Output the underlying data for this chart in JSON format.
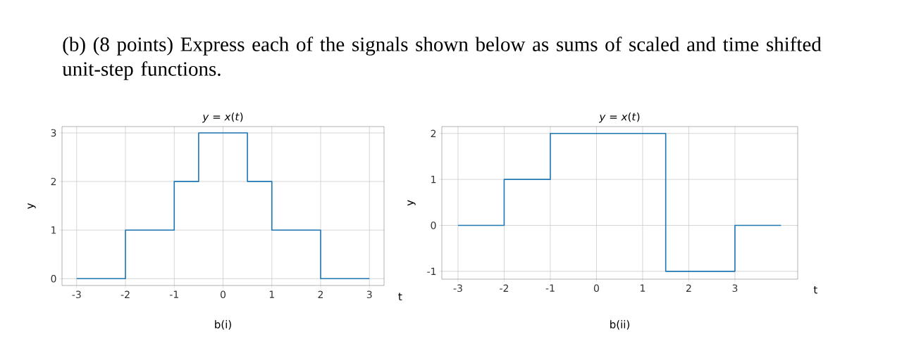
{
  "chart_data": [
    {
      "type": "step",
      "title": "*y* = *x*(*t*)",
      "xlabel": "t",
      "ylabel": "y",
      "x": [
        -3,
        -2,
        -1,
        -0.5,
        0.5,
        1,
        2,
        3
      ],
      "values": [
        0,
        1,
        2,
        3,
        2,
        1,
        0,
        0
      ],
      "color": "#1f77b4",
      "xlim": [
        -3.3,
        3.3
      ],
      "ylim": [
        -0.14,
        3.13
      ],
      "xticks": [
        -3,
        -2,
        -1,
        0,
        1,
        2,
        3
      ],
      "yticks": [
        0,
        1,
        2,
        3
      ],
      "grid": true,
      "annotations": [
        "(b) (8 points) Express each of the signals shown below as sums of scaled and time shifted unit-step functions.",
        "b(i)"
      ]
    },
    {
      "type": "step",
      "title": "*y* = *x*(*t*)",
      "xlabel": "t",
      "ylabel": "y",
      "x": [
        -3,
        -2,
        -1,
        1.5,
        3,
        4
      ],
      "values": [
        0,
        1,
        2,
        -1,
        0,
        0
      ],
      "color": "#1f77b4",
      "xlim": [
        -3.35,
        4.36
      ],
      "ylim": [
        -1.17,
        2.15
      ],
      "xticks": [
        -3,
        -2,
        -1,
        0,
        1,
        2,
        3
      ],
      "yticks": [
        -1,
        0,
        1,
        2
      ],
      "grid": true,
      "annotations": [
        "b(ii)"
      ]
    }
  ]
}
